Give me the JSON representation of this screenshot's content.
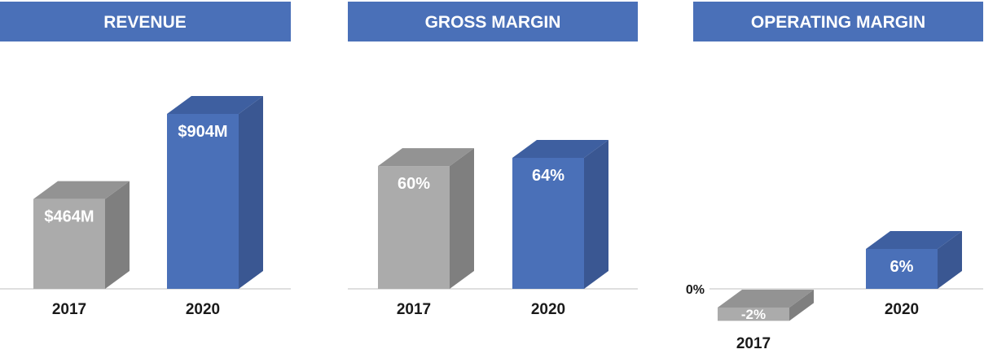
{
  "colors": {
    "header_bg": "#4a70b8",
    "bar_2017": "#ababab",
    "bar_2017_top": "#939393",
    "bar_2017_side": "#7f7f7f",
    "bar_2020": "#4a70b8",
    "bar_2020_top": "#3e5fa0",
    "bar_2020_side": "#3a5792",
    "axis": "#bfbfbf"
  },
  "chart_data": [
    {
      "type": "bar",
      "title": "REVENUE",
      "categories": [
        "2017",
        "2020"
      ],
      "values": [
        464,
        904
      ],
      "data_labels": [
        "$464M",
        "$904M"
      ],
      "unit": "$M",
      "ylim": [
        0,
        1000
      ]
    },
    {
      "type": "bar",
      "title": "GROSS MARGIN",
      "categories": [
        "2017",
        "2020"
      ],
      "values": [
        60,
        64
      ],
      "data_labels": [
        "60%",
        "64%"
      ],
      "unit": "%",
      "ylim": [
        0,
        100
      ]
    },
    {
      "type": "bar",
      "title": "OPERATING MARGIN",
      "categories": [
        "2017",
        "2020"
      ],
      "values": [
        -2,
        6
      ],
      "data_labels": [
        "-2%",
        "6%"
      ],
      "unit": "%",
      "zero_label": "0%",
      "ylim": [
        -3,
        20
      ]
    }
  ]
}
